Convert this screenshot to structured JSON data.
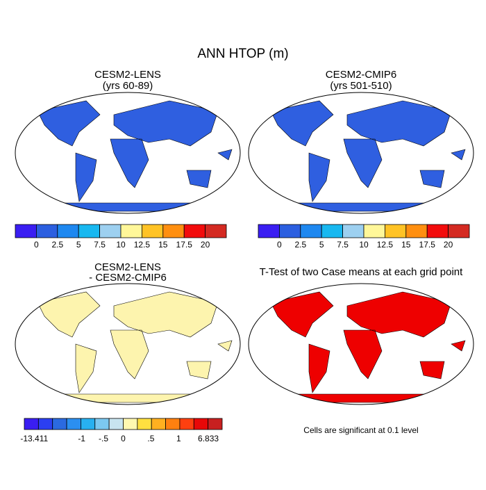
{
  "title": "ANN HTOP (m)",
  "panels": [
    {
      "title": [
        "CESM2-LENS",
        "(yrs 60-89)"
      ],
      "map_color": "#2f5fe0"
    },
    {
      "title": [
        "CESM2-CMIP6",
        "(yrs 501-510)"
      ],
      "map_color": "#2f5fe0"
    },
    {
      "title": [
        "CESM2-LENS",
        "- CESM2-CMIP6"
      ],
      "map_color": "#fdf4ae"
    },
    {
      "title": [
        "T-Test of two Case means at each grid point"
      ],
      "map_color": "#ee0000"
    }
  ],
  "colorbars": [
    {
      "colors": [
        "#3a1ef2",
        "#2c5fe0",
        "#1e88f0",
        "#18b8f0",
        "#9dd0f0",
        "#fff799",
        "#ffc325",
        "#ff8f10",
        "#f20c0c",
        "#d42a22"
      ],
      "labels": [
        0,
        2.5,
        5,
        7.5,
        10,
        12.5,
        15,
        17.5,
        20
      ]
    },
    {
      "colors": [
        "#3a1ef2",
        "#2c5fe0",
        "#1e88f0",
        "#18b8f0",
        "#9dd0f0",
        "#fff799",
        "#ffc325",
        "#ff8f10",
        "#f20c0c",
        "#d42a22"
      ],
      "labels": [
        0,
        2.5,
        5,
        7.5,
        10,
        12.5,
        15,
        17.5,
        20
      ]
    },
    {
      "colors": [
        "#3a1ef2",
        "#2b3ff2",
        "#2b6ae0",
        "#2b8ff0",
        "#28b0f0",
        "#7cc8f0",
        "#c8e4f0",
        "#fff8b0",
        "#ffe040",
        "#ffb020",
        "#ff8010",
        "#ff4010",
        "#e80808",
        "#c82020"
      ],
      "labels": [
        -13.411,
        -1,
        {
          "value": -0.5,
          "label": "-.5"
        },
        0,
        {
          "value": 0.5,
          "label": ".5"
        },
        1,
        6.833
      ]
    }
  ],
  "note": "Cells are significant at 0.1 level"
}
